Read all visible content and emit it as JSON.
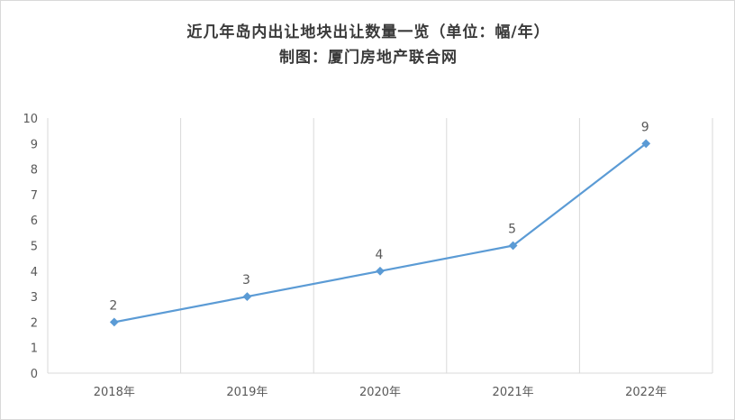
{
  "chart_data": {
    "type": "line",
    "title": "近几年岛内出让地块出让数量一览（单位：幅/年）",
    "subtitle": "制图：厦门房地产联合网",
    "categories": [
      "2018年",
      "2019年",
      "2020年",
      "2021年",
      "2022年"
    ],
    "series": [
      {
        "values": [
          2,
          3,
          4,
          5,
          9
        ],
        "color": "#5b9bd5"
      }
    ],
    "data_labels": [
      "2",
      "3",
      "4",
      "5",
      "9"
    ],
    "ylim": [
      0,
      10
    ],
    "yticks": [
      "0",
      "1",
      "2",
      "3",
      "4",
      "5",
      "6",
      "7",
      "8",
      "9",
      "10"
    ],
    "grid": "vertical",
    "legend": "none",
    "xlabel": "",
    "ylabel": ""
  }
}
